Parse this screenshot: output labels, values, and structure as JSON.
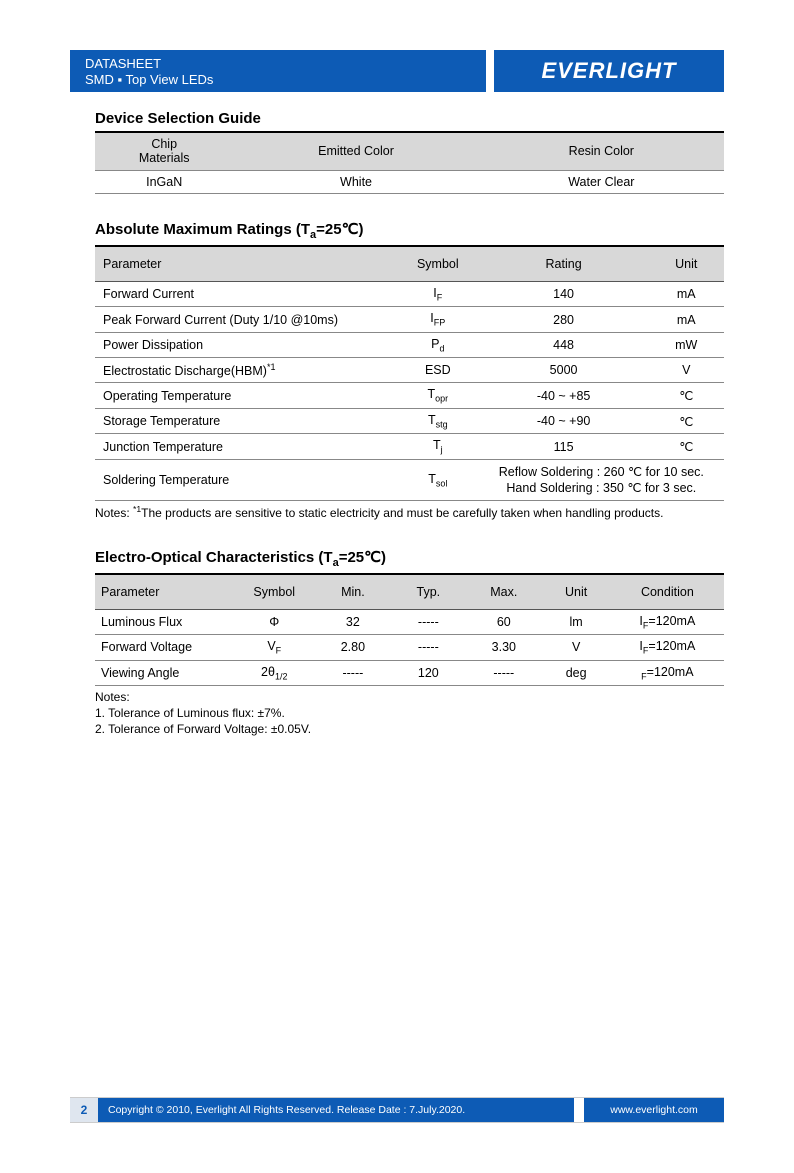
{
  "header": {
    "line1": "DATASHEET",
    "line2": "SMD ▪ Top View LEDs",
    "brand": "EVERLIGHT"
  },
  "section1": {
    "title": "Device Selection Guide",
    "columns": [
      "Chip\nMaterials",
      "Emitted Color",
      "Resin Color"
    ],
    "row": [
      "InGaN",
      "White",
      "Water Clear"
    ]
  },
  "section2": {
    "title_prefix": "Absolute Maximum Ratings (T",
    "title_sub": "a",
    "title_suffix": "=25℃)",
    "columns": [
      "Parameter",
      "Symbol",
      "Rating",
      "Unit"
    ],
    "rows": [
      {
        "param": "Forward Current",
        "sym": "I",
        "sub": "F",
        "rating": "140",
        "unit": "mA"
      },
      {
        "param": "Peak Forward Current (Duty 1/10 @10ms)",
        "sym": "I",
        "sub": "FP",
        "rating": "280",
        "unit": "mA"
      },
      {
        "param": "Power Dissipation",
        "sym": "P",
        "sub": "d",
        "rating": "448",
        "unit": "mW"
      },
      {
        "param_html": "Electrostatic Discharge(HBM)<sup>*1</sup>",
        "sym": "ESD",
        "sub": "",
        "rating": "5000",
        "unit": "V"
      },
      {
        "param": "Operating Temperature",
        "sym": "T",
        "sub": "opr",
        "rating": "-40 ~ +85",
        "unit": "℃"
      },
      {
        "param": "Storage Temperature",
        "sym": "T",
        "sub": "stg",
        "rating": "-40 ~ +90",
        "unit": "℃"
      },
      {
        "param": "Junction Temperature",
        "sym": "T",
        "sub": "j",
        "rating": "115",
        "unit": "℃"
      },
      {
        "param": "Soldering Temperature",
        "sym": "T",
        "sub": "sol",
        "rating_html": "Reflow Soldering : 260  ℃  for 10 sec.<br>Hand Soldering : 350  ℃  for 3 sec.",
        "unit": ""
      }
    ],
    "note_html": "Notes: <sup>*1</sup>The products are sensitive to static electricity and must be carefully taken when handling products."
  },
  "section3": {
    "title_prefix": "Electro-Optical Characteristics (T",
    "title_sub": "a",
    "title_suffix": "=25℃)",
    "columns": [
      "Parameter",
      "Symbol",
      "Min.",
      "Typ.",
      "Max.",
      "Unit",
      "Condition"
    ],
    "rows": [
      {
        "param": "Luminous Flux",
        "sym": "Φ",
        "min": "32",
        "typ": "-----",
        "max": "60",
        "unit": "lm",
        "cond_html": "I<sub>F</sub>=120mA"
      },
      {
        "param": "Forward Voltage",
        "sym_html": "V<sub>F</sub>",
        "min": "2.80",
        "typ": "-----",
        "max": "3.30",
        "unit": "V",
        "cond_html": "I<sub>F</sub>=120mA"
      },
      {
        "param": "Viewing Angle",
        "sym_html": "2θ<sub>1/2</sub>",
        "min": "-----",
        "typ": "120",
        "max": "-----",
        "unit": "deg",
        "cond_html": "<sub>F</sub>=120mA"
      }
    ],
    "notes": [
      "Notes:",
      "1. Tolerance of Luminous flux: ±7%.",
      "2. Tolerance of Forward Voltage: ±0.05V."
    ]
  },
  "footer": {
    "page": "2",
    "copyright": "Copyright © 2010, Everlight All Rights Reserved. Release Date : 7.July.2020.",
    "url": "www.everlight.com"
  },
  "colors": {
    "brand_blue": "#0d5bb5",
    "header_gray": "#d8d8d8"
  }
}
